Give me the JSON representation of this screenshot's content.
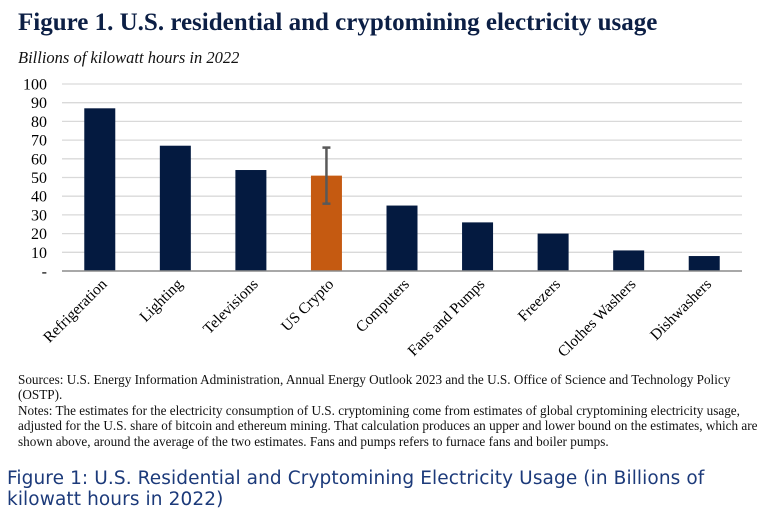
{
  "header": {
    "title": "Figure 1. U.S. residential and cryptomining electricity usage",
    "subtitle": "Billions of kilowatt hours in 2022"
  },
  "chart_data": {
    "type": "bar",
    "title": "Figure 1. U.S. residential and cryptomining electricity usage",
    "ylabel": "Billions of kilowatt hours in 2022",
    "xlabel": "",
    "ylim": [
      0,
      100
    ],
    "yticks": [
      0,
      10,
      20,
      30,
      40,
      50,
      60,
      70,
      80,
      90,
      100
    ],
    "ytick_labels": [
      "-",
      "10",
      "20",
      "30",
      "40",
      "50",
      "60",
      "70",
      "80",
      "90",
      "100"
    ],
    "grid": true,
    "categories": [
      "Refrigeration",
      "Lighting",
      "Televisions",
      "US Crypto",
      "Computers",
      "Fans and Pumps",
      "Freezers",
      "Clothes Washers",
      "Dishwashers"
    ],
    "values": [
      87,
      67,
      54,
      51,
      35,
      26,
      20,
      11,
      8
    ],
    "bar_colors": [
      "#041a40",
      "#041a40",
      "#041a40",
      "#c55a11",
      "#041a40",
      "#041a40",
      "#041a40",
      "#041a40",
      "#041a40"
    ],
    "error_bars": [
      {
        "category": "US Crypto",
        "lower": 36,
        "upper": 66,
        "color": "#595959"
      }
    ]
  },
  "notes": {
    "sources": "Sources: U.S. Energy Information  Administration, Annual Energy Outlook 2023 and the U.S. Office  of Science and Technology Policy (OSTP).",
    "notes": "Notes: The estimates for the electricity consumption of U.S. cryptomining come from estimates of global cryptomining electricity usage, adjusted for the U.S. share of bitcoin and ethereum mining. That calculation produces an upper and lower bound on the estimates, which are shown above,  around the average of the two estimates. Fans and pumps refers to furnace fans and boiler pumps."
  },
  "caption": "Figure 1: U.S. Residential and Cryptomining Electricity Usage (in Billions of kilowatt hours in 2022)"
}
